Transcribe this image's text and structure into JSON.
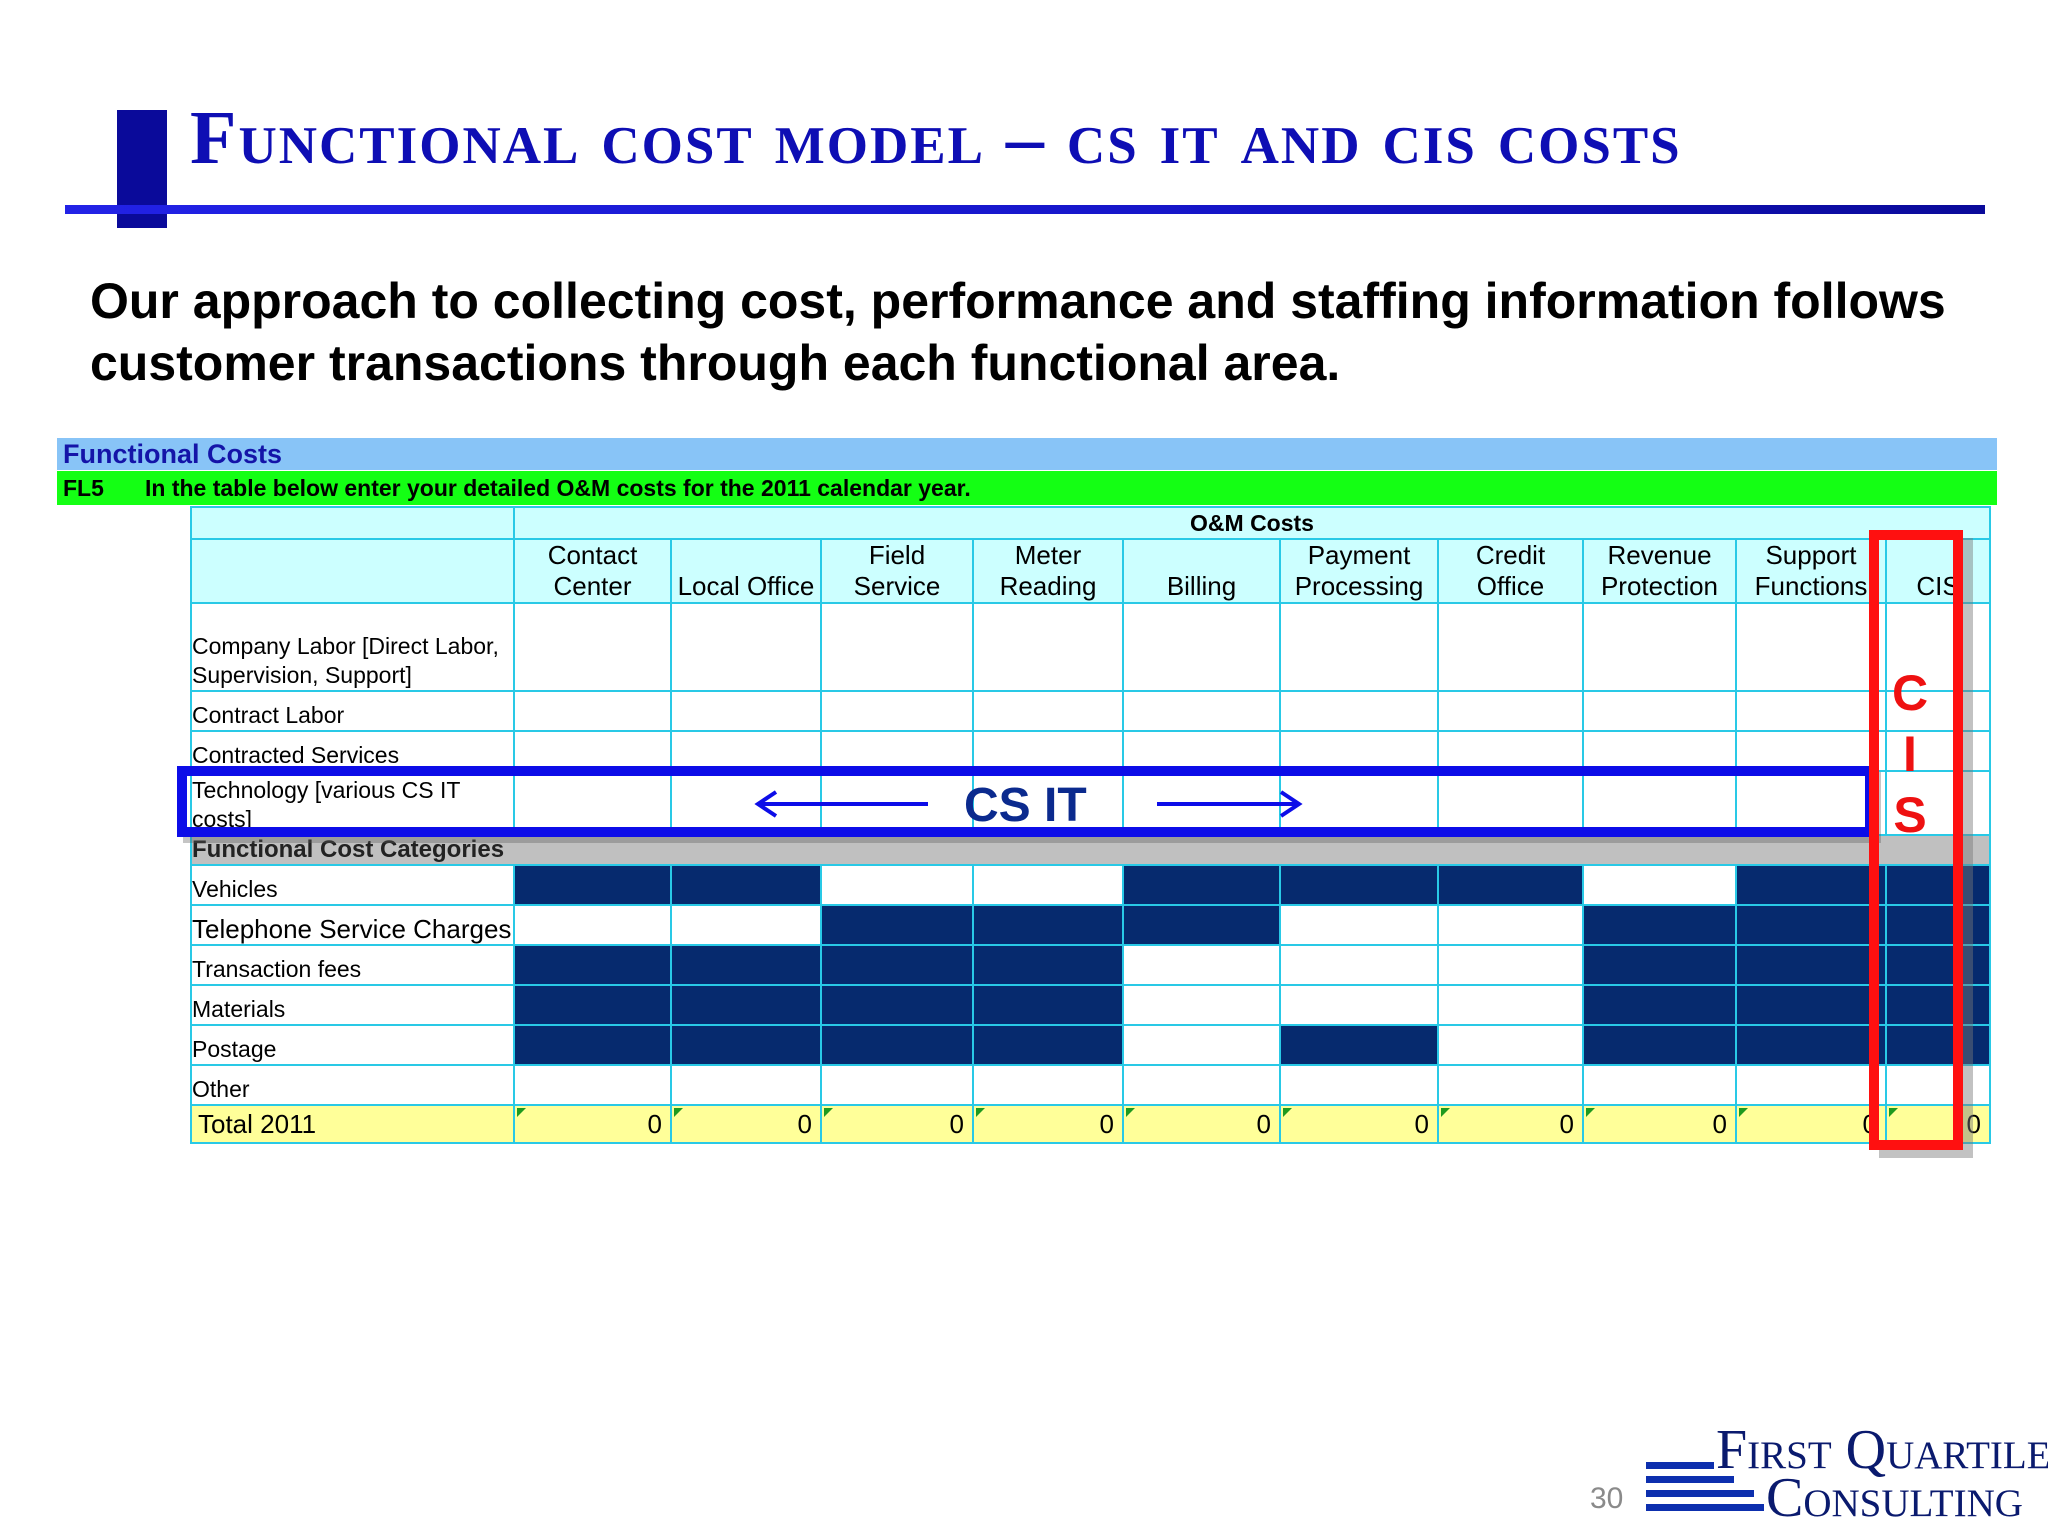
{
  "title": "Functional Cost Model – CS IT and CIS Costs",
  "subtitle": "Our approach to collecting cost, performance and staffing information follows customer transactions through each functional area.",
  "sheet": {
    "band_title": "Functional Costs",
    "code": "FL5",
    "instruction": "In the table below enter your detailed O&M costs for the 2011 calendar year.",
    "group_header": "O&M Costs",
    "columns": [
      "Contact Center",
      "Local Office",
      "Field Service",
      "Meter Reading",
      "Billing",
      "Payment Processing",
      "Credit Office",
      "Revenue Protection",
      "Support Functions",
      "CIS"
    ],
    "rows_top": [
      {
        "label": "Company Labor [Direct Labor, Supervision, Support]"
      },
      {
        "label": "Contract Labor"
      },
      {
        "label": "Contracted Services"
      },
      {
        "label": "Technology [various CS IT costs]"
      }
    ],
    "section_label": "Functional Cost Categories",
    "rows_bottom": [
      {
        "label": "Vehicles",
        "filled": [
          1,
          1,
          0,
          0,
          1,
          1,
          1,
          0,
          1,
          1
        ]
      },
      {
        "label": "Telephone Service Charges",
        "filled": [
          0,
          0,
          1,
          1,
          1,
          0,
          0,
          1,
          1,
          1
        ]
      },
      {
        "label": "Transaction fees",
        "filled": [
          1,
          1,
          1,
          1,
          0,
          0,
          0,
          1,
          1,
          1
        ]
      },
      {
        "label": "Materials",
        "filled": [
          1,
          1,
          1,
          1,
          0,
          0,
          0,
          1,
          1,
          1
        ]
      },
      {
        "label": "Postage",
        "filled": [
          1,
          1,
          1,
          1,
          0,
          1,
          0,
          1,
          1,
          1
        ]
      },
      {
        "label": "Other",
        "filled": [
          0,
          0,
          0,
          0,
          0,
          0,
          0,
          0,
          0,
          0
        ]
      }
    ],
    "total": {
      "label": "Total 2011",
      "values": [
        "0",
        "0",
        "0",
        "0",
        "0",
        "0",
        "0",
        "0",
        "0",
        "0"
      ]
    }
  },
  "overlays": {
    "cs_it_label": "CS IT",
    "cis_letters": [
      "C",
      "I",
      "S"
    ],
    "cs_it_color": "#0d0de8",
    "cis_color": "#ff1010"
  },
  "footer": {
    "page_number": "30",
    "logo_line1": "First Quartile",
    "logo_line2": "Consulting"
  }
}
